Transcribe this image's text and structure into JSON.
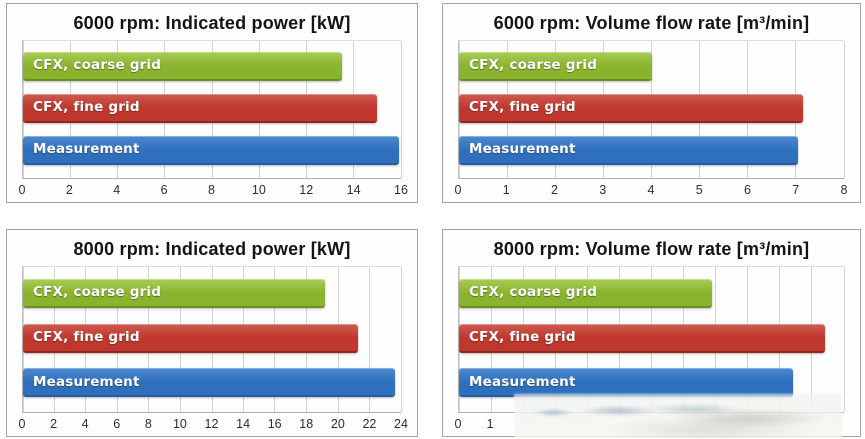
{
  "page": {
    "background": "#ffffff"
  },
  "series_colors": {
    "coarse": {
      "top": "#a9cd55",
      "base": "#8ab42e",
      "edge": "#6a8e24"
    },
    "fine": {
      "top": "#d05a50",
      "base": "#bf372d",
      "edge": "#8f2721"
    },
    "measurement": {
      "top": "#4d89ce",
      "base": "#2f70be",
      "edge": "#265e9d"
    }
  },
  "chart_data": [
    {
      "type": "bar",
      "orientation": "horizontal",
      "title": "6000 rpm: Indicated power [kW]",
      "categories": [
        "CFX, coarse grid",
        "CFX, fine grid",
        "Measurement"
      ],
      "xlim": [
        0,
        16
      ],
      "grid_step": 2,
      "grid": true,
      "tick_labels": [
        {
          "v": 0,
          "label": "0"
        },
        {
          "v": 2,
          "label": "2"
        },
        {
          "v": 4,
          "label": "4"
        },
        {
          "v": 6,
          "label": "6"
        },
        {
          "v": 8,
          "label": "8"
        },
        {
          "v": 10,
          "label": "10"
        },
        {
          "v": 12,
          "label": "12"
        },
        {
          "v": 14,
          "label": "14"
        },
        {
          "v": 16,
          "label": "16"
        }
      ],
      "bars": [
        {
          "label": "CFX, coarse grid",
          "series": "coarse",
          "value": 13.5
        },
        {
          "label": "CFX, fine grid",
          "series": "fine",
          "value": 15.0
        },
        {
          "label": "Measurement",
          "series": "measurement",
          "value": 15.9
        }
      ],
      "watermark": false
    },
    {
      "type": "bar",
      "orientation": "horizontal",
      "title": "6000 rpm: Volume flow rate [m³/min]",
      "categories": [
        "CFX, coarse grid",
        "CFX, fine grid",
        "Measurement"
      ],
      "xlim": [
        0,
        8
      ],
      "grid_step": 1,
      "grid": true,
      "tick_labels": [
        {
          "v": 0,
          "label": "0"
        },
        {
          "v": 1,
          "label": "1"
        },
        {
          "v": 2,
          "label": "2"
        },
        {
          "v": 3,
          "label": "3"
        },
        {
          "v": 4,
          "label": "4"
        },
        {
          "v": 5,
          "label": "5"
        },
        {
          "v": 6,
          "label": "6"
        },
        {
          "v": 7,
          "label": "7"
        },
        {
          "v": 8,
          "label": "8"
        }
      ],
      "bars": [
        {
          "label": "CFX, coarse grid",
          "series": "coarse",
          "value": 4.0
        },
        {
          "label": "CFX, fine grid",
          "series": "fine",
          "value": 7.15
        },
        {
          "label": "Measurement",
          "series": "measurement",
          "value": 7.05
        }
      ],
      "watermark": false
    },
    {
      "type": "bar",
      "orientation": "horizontal",
      "title": "8000 rpm: Indicated power [kW]",
      "categories": [
        "CFX, coarse grid",
        "CFX, fine grid",
        "Measurement"
      ],
      "xlim": [
        0,
        24
      ],
      "grid_step": 2,
      "grid": true,
      "tick_labels": [
        {
          "v": 0,
          "label": "0"
        },
        {
          "v": 2,
          "label": "2"
        },
        {
          "v": 4,
          "label": "4"
        },
        {
          "v": 6,
          "label": "6"
        },
        {
          "v": 8,
          "label": "8"
        },
        {
          "v": 10,
          "label": "10"
        },
        {
          "v": 12,
          "label": "12"
        },
        {
          "v": 14,
          "label": "14"
        },
        {
          "v": 16,
          "label": "16"
        },
        {
          "v": 18,
          "label": "18"
        },
        {
          "v": 20,
          "label": "20"
        },
        {
          "v": 22,
          "label": "22"
        },
        {
          "v": 24,
          "label": "24"
        }
      ],
      "bars": [
        {
          "label": "CFX, coarse grid",
          "series": "coarse",
          "value": 19.2
        },
        {
          "label": "CFX, fine grid",
          "series": "fine",
          "value": 21.3
        },
        {
          "label": "Measurement",
          "series": "measurement",
          "value": 23.6
        }
      ],
      "watermark": false
    },
    {
      "type": "bar",
      "orientation": "horizontal",
      "title": "8000 rpm: Volume flow rate [m³/min]",
      "categories": [
        "CFX, coarse grid",
        "CFX, fine grid",
        "Measurement"
      ],
      "xlim": [
        0,
        12
      ],
      "grid_step": 1,
      "grid": true,
      "tick_labels": [
        {
          "v": 0,
          "label": "0"
        },
        {
          "v": 1,
          "label": "1"
        }
      ],
      "bars": [
        {
          "label": "CFX, coarse grid",
          "series": "coarse",
          "value": 7.9
        },
        {
          "label": "CFX, fine grid",
          "series": "fine",
          "value": 11.4
        },
        {
          "label": "Measurement",
          "series": "measurement",
          "value": 10.4
        }
      ],
      "watermark": true
    }
  ]
}
